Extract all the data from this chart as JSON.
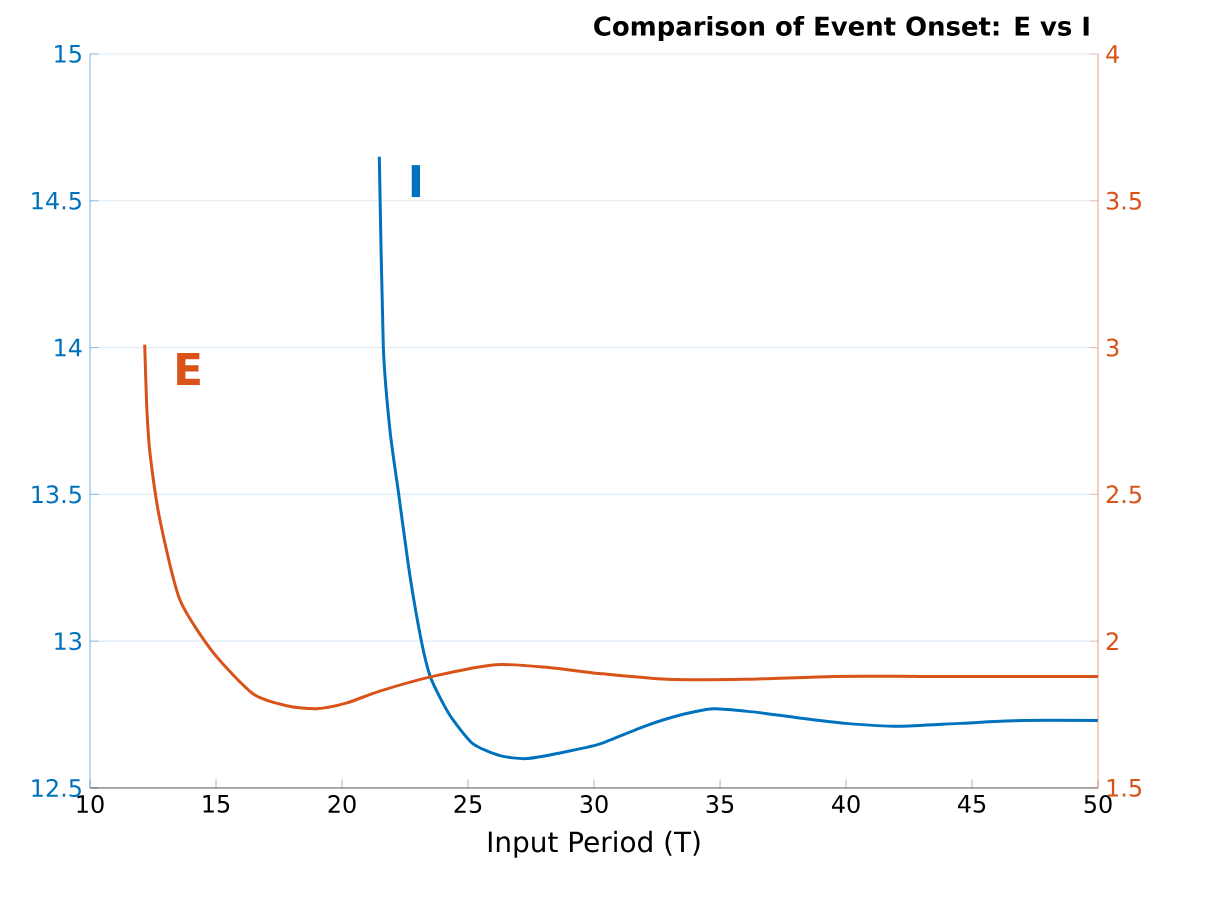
{
  "chart_data": {
    "type": "line",
    "title": "Comparison of Event Onset: E vs I",
    "xlabel": "Input Period (T)",
    "xlim": [
      10,
      50
    ],
    "xticks": [
      10,
      15,
      20,
      25,
      30,
      35,
      40,
      45,
      50
    ],
    "ylim": [
      12.5,
      15
    ],
    "yticks": [
      12.5,
      13,
      13.5,
      14,
      14.5,
      15
    ],
    "y2lim": [
      1.5,
      4
    ],
    "y2ticks": [
      1.5,
      2,
      2.5,
      3,
      3.5,
      4
    ],
    "grid": "y",
    "line_style": "solid",
    "marker": "none",
    "series": [
      {
        "name": "I",
        "color": "#0072bd",
        "x": [
          21.48,
          21.64,
          21.9,
          22.25,
          22.7,
          23.15,
          23.5,
          24.0,
          24.42,
          25.2,
          26.27,
          27.3,
          28.7,
          30.24,
          32.0,
          33.5,
          34.74,
          36.2,
          38.0,
          40.0,
          42.1,
          44.5,
          47.0,
          50
        ],
        "values": [
          14.65,
          14.0,
          13.72,
          13.5,
          13.22,
          13.0,
          12.88,
          12.79,
          12.73,
          12.65,
          12.61,
          12.6,
          12.62,
          12.65,
          12.71,
          12.75,
          12.77,
          12.76,
          12.74,
          12.72,
          12.71,
          12.72,
          12.73,
          12.73
        ]
      },
      {
        "name": "E",
        "color": "#d95319",
        "axis": "y2",
        "x": [
          12.17,
          12.25,
          12.38,
          12.78,
          13.57,
          14.9,
          16.48,
          17.8,
          18.99,
          20.2,
          21.5,
          23.6,
          26.1,
          28.2,
          30.2,
          32.9,
          36.0,
          39.5,
          43.0,
          46.5,
          50
        ],
        "values": [
          3.01,
          2.8,
          2.64,
          2.41,
          2.14,
          1.96,
          1.82,
          1.78,
          1.77,
          1.79,
          1.83,
          1.88,
          1.92,
          1.91,
          1.89,
          1.87,
          1.87,
          1.88,
          1.88,
          1.88,
          1.88
        ]
      }
    ]
  }
}
